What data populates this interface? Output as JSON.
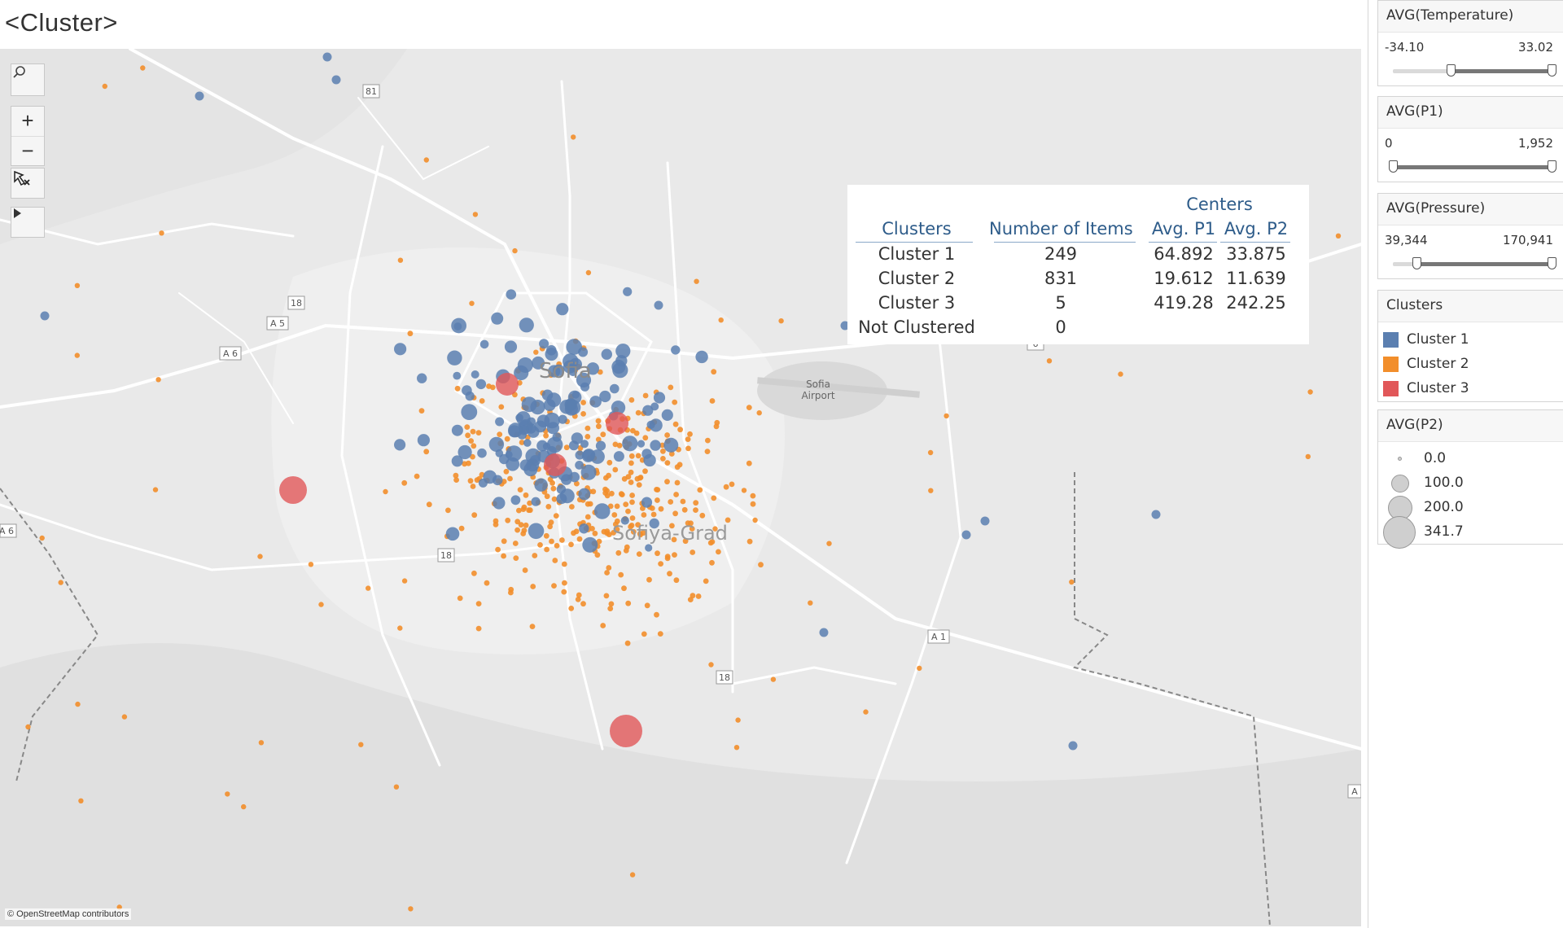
{
  "page_title": "<Cluster>",
  "map": {
    "city_label": "Sofia",
    "region_label": "Sofiya-Grad",
    "airport_label_line1": "Sofia",
    "airport_label_line2": "Airport",
    "road_labels": [
      "81",
      "18",
      "A 5",
      "A 6",
      "6",
      "18",
      "18",
      "A 1",
      "A 6",
      "A"
    ],
    "attribution": "© OpenStreetMap contributors",
    "controls": {
      "search_icon": "search-icon",
      "zoom_in": "+",
      "zoom_out": "−",
      "reset_icon": "reset-map-icon",
      "expand_icon": "play-triangle-icon"
    },
    "colors": {
      "cluster_1": "#5b7fb0",
      "cluster_2": "#f28e2b",
      "cluster_3": "#e15759"
    }
  },
  "summary": {
    "centers_label": "Centers",
    "headers": [
      "Clusters",
      "Number of Items",
      "Avg. P1",
      "Avg. P2"
    ],
    "rows": [
      {
        "cluster": "Cluster 1",
        "items": "249",
        "p1": "64.892",
        "p2": "33.875"
      },
      {
        "cluster": "Cluster 2",
        "items": "831",
        "p1": "19.612",
        "p2": "11.639"
      },
      {
        "cluster": "Cluster 3",
        "items": "5",
        "p1": "419.28",
        "p2": "242.25"
      },
      {
        "cluster": "Not Clustered",
        "items": "0",
        "p1": "",
        "p2": ""
      }
    ]
  },
  "filters": {
    "temperature": {
      "title": "AVG(Temperature)",
      "min": "-34.10",
      "max": "33.02",
      "low_fraction": 0.36,
      "high_fraction": 1.0
    },
    "p1": {
      "title": "AVG(P1)",
      "min": "0",
      "max": "1,952",
      "low_fraction": 0.0,
      "high_fraction": 1.0
    },
    "pressure": {
      "title": "AVG(Pressure)",
      "min": "39,344",
      "max": "170,941",
      "low_fraction": 0.15,
      "high_fraction": 1.0
    }
  },
  "clusters_legend": {
    "title": "Clusters",
    "items": [
      {
        "label": "Cluster 1",
        "color": "#5b7fb0"
      },
      {
        "label": "Cluster 2",
        "color": "#f28e2b"
      },
      {
        "label": "Cluster 3",
        "color": "#e15759"
      }
    ]
  },
  "size_legend": {
    "title": "AVG(P2)",
    "items": [
      "0.0",
      "100.0",
      "200.0",
      "341.7"
    ]
  }
}
